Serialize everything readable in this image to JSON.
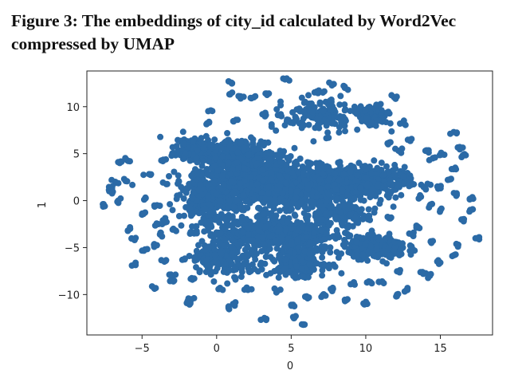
{
  "figure": {
    "caption_line1": "Figure 3: The embeddings of city_id calculated by Word2Vec",
    "caption_line2": "compressed by UMAP"
  },
  "chart_data": {
    "type": "scatter",
    "title": "",
    "xlabel": "0",
    "ylabel": "1",
    "xlim": [
      -8.7,
      18.5
    ],
    "ylim": [
      -14.3,
      13.8
    ],
    "xticks": [
      -5,
      0,
      5,
      10,
      15
    ],
    "xtick_labels": [
      "−5",
      "0",
      "5",
      "10",
      "15"
    ],
    "yticks": [
      10,
      5,
      0,
      -5,
      -10
    ],
    "ytick_labels": [
      "10",
      "5",
      "0",
      "−5",
      "−10"
    ],
    "grid": false,
    "marker_color": "#2b6aa6",
    "dense_regions": [
      {
        "cx": 4.5,
        "cy": 1.5,
        "sx": 4.5,
        "sy": 1.8,
        "n": 1200
      },
      {
        "cx": 9.0,
        "cy": 2.0,
        "sx": 3.0,
        "sy": 1.3,
        "n": 500
      },
      {
        "cx": 1.5,
        "cy": 4.5,
        "sx": 2.6,
        "sy": 1.8,
        "n": 400
      },
      {
        "cx": 4.0,
        "cy": -3.5,
        "sx": 3.2,
        "sy": 1.4,
        "n": 500
      },
      {
        "cx": 10.8,
        "cy": -5.0,
        "sx": 1.6,
        "sy": 0.9,
        "n": 350
      },
      {
        "cx": 5.5,
        "cy": -6.5,
        "sx": 1.5,
        "sy": 1.2,
        "n": 250
      },
      {
        "cx": 10.5,
        "cy": 9.0,
        "sx": 0.8,
        "sy": 0.9,
        "n": 120
      },
      {
        "cx": 7.0,
        "cy": 9.0,
        "sx": 2.0,
        "sy": 1.6,
        "n": 150
      },
      {
        "cx": -0.5,
        "cy": 0.0,
        "sx": 1.6,
        "sy": 2.5,
        "n": 250
      },
      {
        "cx": 0.5,
        "cy": -6.0,
        "sx": 1.8,
        "sy": 1.6,
        "n": 180
      },
      {
        "cx": -1.5,
        "cy": 5.5,
        "sx": 1.0,
        "sy": 1.0,
        "n": 150
      },
      {
        "cx": 8.0,
        "cy": -1.5,
        "sx": 1.8,
        "sy": 0.8,
        "n": 150
      }
    ],
    "outlier_points": [
      [
        -7.5,
        -0.6
      ],
      [
        -7.2,
        1.0
      ],
      [
        -6.8,
        2.0
      ],
      [
        -6.2,
        2.3
      ],
      [
        -6.5,
        4.0
      ],
      [
        -6.0,
        4.3
      ],
      [
        -5.8,
        -3.0
      ],
      [
        -5.5,
        -4.2
      ],
      [
        -5.0,
        -1.5
      ],
      [
        -4.8,
        0.2
      ],
      [
        -4.4,
        2.8
      ],
      [
        -3.6,
        4.2
      ],
      [
        -4.0,
        -0.5
      ],
      [
        -3.8,
        -3.6
      ],
      [
        -4.8,
        -5.2
      ],
      [
        -3.5,
        -6.5
      ],
      [
        -4.2,
        -9.3
      ],
      [
        -3.0,
        -8.0
      ],
      [
        -2.9,
        -8.6
      ],
      [
        -2.0,
        -10.9
      ],
      [
        -1.7,
        -10.5
      ],
      [
        -1.5,
        -8.3
      ],
      [
        0.2,
        -9.4
      ],
      [
        1.1,
        -11.0
      ],
      [
        0.8,
        -11.4
      ],
      [
        2.1,
        -9.5
      ],
      [
        3.2,
        -12.5
      ],
      [
        4.1,
        -9.6
      ],
      [
        5.0,
        -11.1
      ],
      [
        5.3,
        -12.3
      ],
      [
        5.9,
        -13.2
      ],
      [
        6.1,
        -10.4
      ],
      [
        7.1,
        -10.1
      ],
      [
        7.8,
        -9.4
      ],
      [
        8.7,
        -10.6
      ],
      [
        10.1,
        -11.0
      ],
      [
        9.2,
        -8.7
      ],
      [
        11.1,
        -8.6
      ],
      [
        12.3,
        -7.4
      ],
      [
        12.8,
        -9.5
      ],
      [
        12.1,
        -10.0
      ],
      [
        13.8,
        -7.6
      ],
      [
        14.3,
        -8.0
      ],
      [
        15.0,
        -6.6
      ],
      [
        14.5,
        -4.3
      ],
      [
        15.8,
        -5.9
      ],
      [
        16.2,
        -4.7
      ],
      [
        16.5,
        -2.0
      ],
      [
        17.6,
        -3.9
      ],
      [
        17.0,
        -1.0
      ],
      [
        17.2,
        0.2
      ],
      [
        15.5,
        2.2
      ],
      [
        16.0,
        3.5
      ],
      [
        16.5,
        4.8
      ],
      [
        16.3,
        5.7
      ],
      [
        15.9,
        7.3
      ],
      [
        15.1,
        4.9
      ],
      [
        14.5,
        4.5
      ],
      [
        14.0,
        5.3
      ],
      [
        13.0,
        6.5
      ],
      [
        12.2,
        5.3
      ],
      [
        12.5,
        8.3
      ],
      [
        11.5,
        6.0
      ],
      [
        11.9,
        11.0
      ],
      [
        10.6,
        8.2
      ],
      [
        8.6,
        12.0
      ],
      [
        7.8,
        12.4
      ],
      [
        7.6,
        10.5
      ],
      [
        6.7,
        11.6
      ],
      [
        4.7,
        13.0
      ],
      [
        3.5,
        11.4
      ],
      [
        2.5,
        11.0
      ],
      [
        1.6,
        11.1
      ],
      [
        0.9,
        11.3
      ],
      [
        0.8,
        12.7
      ],
      [
        -0.4,
        9.6
      ],
      [
        -0.5,
        8.3
      ],
      [
        1.3,
        8.6
      ],
      [
        3.3,
        9.1
      ],
      [
        4.3,
        9.2
      ],
      [
        -2.3,
        6.2
      ],
      [
        -2.9,
        4.9
      ],
      [
        -1.3,
        3.1
      ],
      [
        -2.9,
        -3.0
      ],
      [
        -1.5,
        -3.5
      ],
      [
        -3.9,
        -2.5
      ],
      [
        -5.5,
        -6.8
      ],
      [
        -6.6,
        0.0
      ],
      [
        -7.0,
        1.5
      ],
      [
        13.1,
        -3.6
      ],
      [
        13.5,
        -2.8
      ],
      [
        12.5,
        2.6
      ],
      [
        13.7,
        0.4
      ],
      [
        14.3,
        -0.5
      ],
      [
        11.7,
        -1.8
      ],
      [
        10.2,
        -8.6
      ],
      [
        2.3,
        -7.5
      ],
      [
        1.3,
        -7.0
      ],
      [
        -0.8,
        -6.3
      ],
      [
        -2.3,
        -6.3
      ],
      [
        -4.2,
        -4.7
      ],
      [
        -3.6,
        -2.1
      ],
      [
        15.0,
        -1.0
      ],
      [
        16.1,
        0.6
      ],
      [
        14.8,
        1.5
      ]
    ]
  }
}
